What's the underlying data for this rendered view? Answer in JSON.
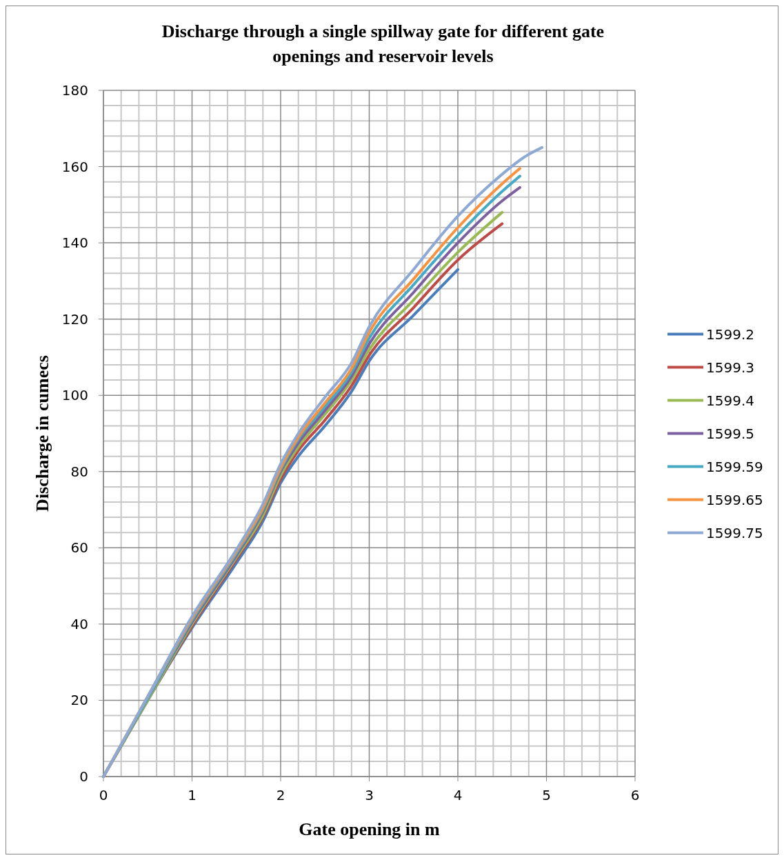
{
  "chart_data": {
    "type": "line",
    "title": "Discharge through a single spillway gate for different gate openings and reservoir levels",
    "xlabel": "Gate opening in m",
    "ylabel": "Discharge in cumecs",
    "xlim": [
      0,
      6
    ],
    "xticks": [
      0,
      1,
      2,
      3,
      4,
      5,
      6
    ],
    "ylim": [
      0,
      180
    ],
    "yticks": [
      0,
      20,
      40,
      60,
      80,
      100,
      120,
      140,
      160,
      180
    ],
    "grid": true,
    "legend": "right",
    "marker": "none",
    "line_style": "solid",
    "series": [
      {
        "name": "1599.2",
        "color": "#4a7ebb",
        "x": [
          0,
          0.5,
          1,
          1.5,
          1.8,
          2,
          2.2,
          2.5,
          2.8,
          3,
          3.5,
          4
        ],
        "values": [
          0,
          20,
          39,
          56,
          67,
          77,
          84,
          92,
          101,
          109,
          121,
          133
        ]
      },
      {
        "name": "1599.3",
        "color": "#be4b48",
        "x": [
          0,
          0.5,
          1,
          1.5,
          1.8,
          2,
          2.2,
          2.5,
          2.8,
          3,
          3.5,
          4,
          4.5
        ],
        "values": [
          0,
          20,
          39.5,
          57,
          68,
          78,
          85.5,
          93.5,
          102.5,
          110.5,
          123,
          135.5,
          145
        ]
      },
      {
        "name": "1599.4",
        "color": "#98b954",
        "x": [
          0,
          0.5,
          1,
          1.5,
          1.8,
          2,
          2.2,
          2.5,
          2.8,
          3,
          3.5,
          4,
          4.5
        ],
        "values": [
          0,
          20,
          40,
          57.5,
          68.5,
          79,
          86.5,
          95,
          104,
          112,
          125,
          137.5,
          148
        ]
      },
      {
        "name": "1599.5",
        "color": "#7d60a0",
        "x": [
          0,
          0.5,
          1,
          1.5,
          1.8,
          2,
          2.2,
          2.5,
          2.8,
          3,
          3.5,
          4,
          4.5,
          4.7
        ],
        "values": [
          0,
          20.5,
          40.5,
          58,
          69.5,
          80,
          87.5,
          96,
          105,
          113.5,
          127,
          140,
          151,
          154.5
        ]
      },
      {
        "name": "1599.59",
        "color": "#46aac5",
        "x": [
          0,
          0.5,
          1,
          1.5,
          1.8,
          2,
          2.2,
          2.5,
          2.8,
          3,
          3.5,
          4,
          4.5,
          4.7
        ],
        "values": [
          0,
          20.5,
          41,
          58.5,
          70,
          80.5,
          88.5,
          97,
          106,
          115,
          129,
          142,
          153.5,
          157.5
        ]
      },
      {
        "name": "1599.65",
        "color": "#f69240",
        "x": [
          0,
          0.5,
          1,
          1.5,
          1.8,
          2,
          2.2,
          2.5,
          2.8,
          3,
          3.5,
          4,
          4.5,
          4.7
        ],
        "values": [
          0,
          21,
          41.5,
          59,
          70.5,
          81,
          89,
          98,
          107,
          116.5,
          130.5,
          144,
          155.5,
          159.5
        ]
      },
      {
        "name": "1599.75",
        "color": "#8ea9d4",
        "x": [
          0,
          0.5,
          1,
          1.5,
          1.8,
          2,
          2.2,
          2.5,
          2.8,
          3,
          3.5,
          4,
          4.5,
          4.75,
          4.95
        ],
        "values": [
          0,
          21,
          42,
          59.5,
          71.5,
          82,
          90,
          99.5,
          108.5,
          118,
          133,
          147,
          158,
          162.5,
          165
        ]
      }
    ]
  }
}
